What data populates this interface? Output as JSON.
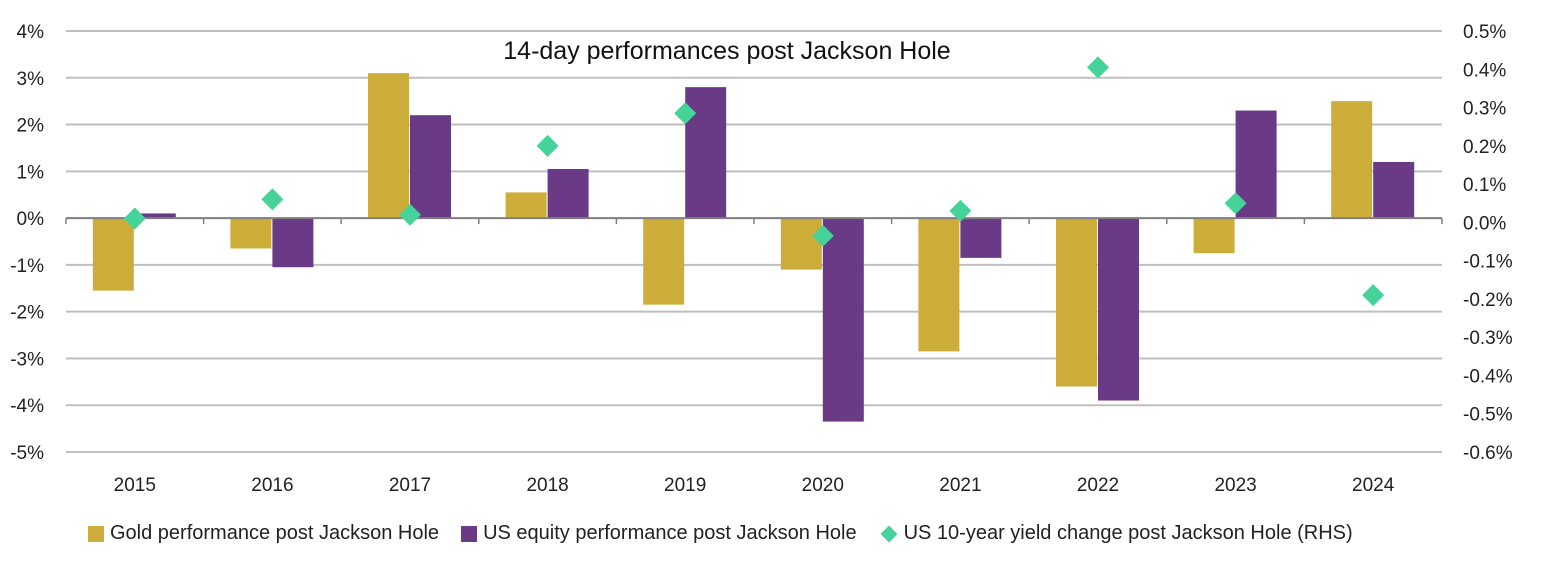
{
  "chart_data": {
    "type": "bar",
    "title": "14-day performances post Jackson Hole",
    "categories": [
      "2015",
      "2016",
      "2017",
      "2018",
      "2019",
      "2020",
      "2021",
      "2022",
      "2023",
      "2024"
    ],
    "series": [
      {
        "name": "Gold performance post Jackson Hole",
        "axis": "left",
        "kind": "bar",
        "color": "#CDAD3A",
        "values": [
          -1.55,
          -0.65,
          3.1,
          0.55,
          -1.85,
          -1.1,
          -2.85,
          -3.6,
          -0.75,
          2.5
        ]
      },
      {
        "name": "US equity performance post Jackson Hole",
        "axis": "left",
        "kind": "bar",
        "color": "#6B3A87",
        "values": [
          0.1,
          -1.05,
          2.2,
          1.05,
          2.8,
          -4.35,
          -0.85,
          -3.9,
          2.3,
          1.2
        ]
      },
      {
        "name": "US 10-year yield change post Jackson Hole (RHS)",
        "axis": "right",
        "kind": "scatter",
        "color": "#46D39A",
        "values": [
          0.01,
          0.06,
          0.02,
          0.2,
          0.285,
          -0.035,
          0.03,
          0.405,
          0.05,
          -0.19
        ]
      }
    ],
    "ylim_left": [
      -5,
      4
    ],
    "yticks_left": [
      "4%",
      "3%",
      "2%",
      "1%",
      "0%",
      "-1%",
      "-2%",
      "-3%",
      "-4%",
      "-5%"
    ],
    "ylim_right": [
      -0.6,
      0.5
    ],
    "yticks_right": [
      "0.5%",
      "0.4%",
      "0.3%",
      "0.2%",
      "0.1%",
      "0.0%",
      "-0.1%",
      "-0.2%",
      "-0.3%",
      "-0.4%",
      "-0.5%",
      "-0.6%"
    ],
    "xlabel": "",
    "ylabel": "",
    "grid": true,
    "legend_position": "bottom"
  }
}
